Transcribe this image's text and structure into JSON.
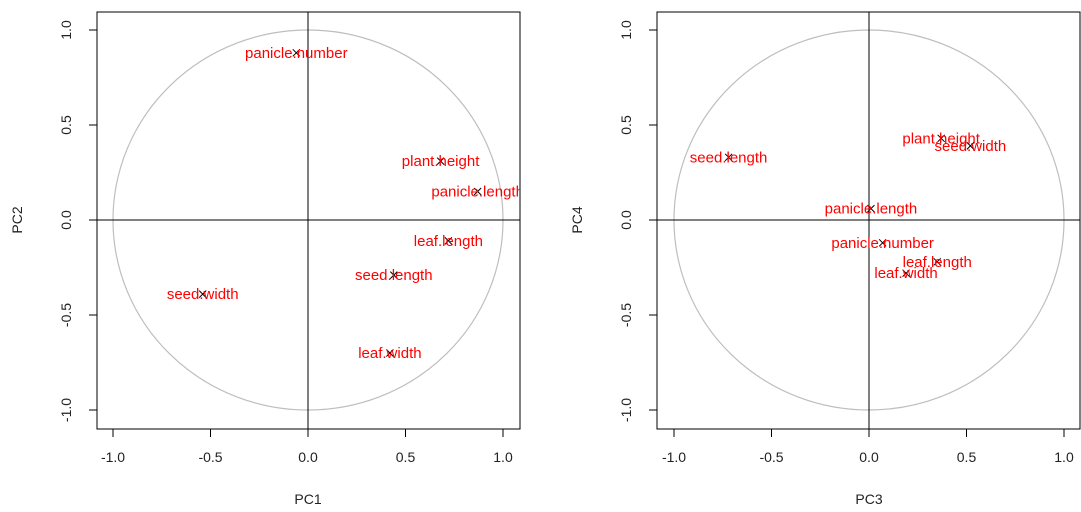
{
  "chart_data": [
    {
      "type": "scatter",
      "title": "",
      "xlabel": "PC1",
      "ylabel": "PC2",
      "xlim": [
        -1.0,
        1.0
      ],
      "ylim": [
        -1.0,
        1.0
      ],
      "x_ticks": [
        "-1.0",
        "-0.5",
        "0.0",
        "0.5",
        "1.0"
      ],
      "y_ticks": [
        "-1.0",
        "-0.5",
        "0.0",
        "0.5",
        "1.0"
      ],
      "unit_circle": true,
      "grid": false,
      "reference_lines": {
        "x": 0,
        "y": 0
      },
      "label_color": "#ff0000",
      "marker_color": "#000000",
      "circle_color": "#bebebe",
      "marker": "x",
      "points": [
        {
          "label": "panicle.number",
          "x": -0.06,
          "y": 0.88
        },
        {
          "label": "plant.height",
          "x": 0.68,
          "y": 0.31
        },
        {
          "label": "panicle.length",
          "x": 0.87,
          "y": 0.15
        },
        {
          "label": "leaf.length",
          "x": 0.72,
          "y": -0.11
        },
        {
          "label": "seed.length",
          "x": 0.44,
          "y": -0.29
        },
        {
          "label": "seed.width",
          "x": -0.54,
          "y": -0.39
        },
        {
          "label": "leaf.width",
          "x": 0.42,
          "y": -0.7
        }
      ]
    },
    {
      "type": "scatter",
      "title": "",
      "xlabel": "PC3",
      "ylabel": "PC4",
      "xlim": [
        -1.0,
        1.0
      ],
      "ylim": [
        -1.0,
        1.0
      ],
      "x_ticks": [
        "-1.0",
        "-0.5",
        "0.0",
        "0.5",
        "1.0"
      ],
      "y_ticks": [
        "-1.0",
        "-0.5",
        "0.0",
        "0.5",
        "1.0"
      ],
      "unit_circle": true,
      "grid": false,
      "reference_lines": {
        "x": 0,
        "y": 0
      },
      "label_color": "#ff0000",
      "marker_color": "#000000",
      "circle_color": "#bebebe",
      "marker": "x",
      "points": [
        {
          "label": "seed.length",
          "x": -0.72,
          "y": 0.33
        },
        {
          "label": "plant.height",
          "x": 0.37,
          "y": 0.43
        },
        {
          "label": "seed.width",
          "x": 0.52,
          "y": 0.39
        },
        {
          "label": "panicle.length",
          "x": 0.01,
          "y": 0.06
        },
        {
          "label": "panicle.number",
          "x": 0.07,
          "y": -0.12
        },
        {
          "label": "leaf.length",
          "x": 0.35,
          "y": -0.22
        },
        {
          "label": "leaf.width",
          "x": 0.19,
          "y": -0.28
        }
      ]
    }
  ]
}
